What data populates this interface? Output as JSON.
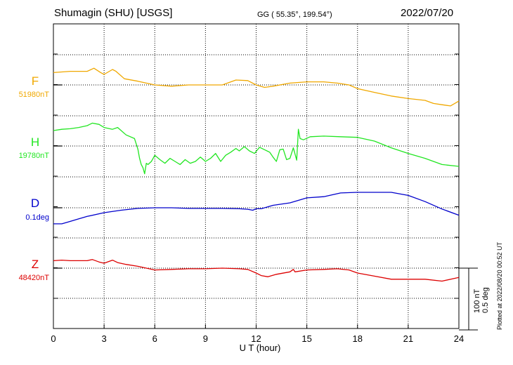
{
  "header": {
    "station": "Shumagin (SHU)  [USGS]",
    "coords": "GG ( 55.35°, 199.54°)",
    "date": "2022/07/20"
  },
  "side_note": "Plotted at 2022/08/20 00:52 UT",
  "scale_bar": {
    "line1": "100 nT",
    "line2": "0.5 deg"
  },
  "colors": {
    "F": "#f0a800",
    "H": "#22e622",
    "D": "#0000cc",
    "Z": "#dd0000"
  },
  "chart_data": {
    "type": "line",
    "xlabel": "U T (hour)",
    "xlim": [
      0,
      24
    ],
    "xticks": [
      "0",
      "3",
      "6",
      "9",
      "12",
      "15",
      "18",
      "21",
      "24"
    ],
    "grid": true,
    "series": [
      {
        "name": "F",
        "baseline_label": "51980nT",
        "unit": "nT",
        "x": [
          0,
          1,
          2,
          2.4,
          2.8,
          3.0,
          3.5,
          3.7,
          4.2,
          5,
          5.5,
          6,
          7,
          8,
          9,
          10,
          10.8,
          11.5,
          12,
          12.5,
          13,
          14,
          15,
          16,
          16.8,
          17.5,
          18,
          19,
          20,
          21,
          22,
          22.5,
          23,
          23.5,
          24
        ],
        "y": [
          20,
          22,
          22,
          27,
          20,
          17,
          25,
          22,
          10,
          6,
          3,
          0,
          -2,
          0,
          0,
          0,
          8,
          7,
          0,
          -4,
          -2,
          3,
          5,
          5,
          3,
          0,
          -6,
          -12,
          -18,
          -22,
          -25,
          -30,
          -32,
          -34,
          -26
        ]
      },
      {
        "name": "H",
        "baseline_label": "19780nT",
        "unit": "nT",
        "x": [
          0,
          0.5,
          1,
          1.5,
          2,
          2.3,
          2.7,
          3,
          3.5,
          3.8,
          4.3,
          4.8,
          5.0,
          5.1,
          5.2,
          5.3,
          5.4,
          5.5,
          5.6,
          5.8,
          6.0,
          6.3,
          6.6,
          6.9,
          7.2,
          7.5,
          7.8,
          8.1,
          8.4,
          8.7,
          9.0,
          9.3,
          9.6,
          9.9,
          10.2,
          10.5,
          10.8,
          11.0,
          11.3,
          11.6,
          11.9,
          12.2,
          12.5,
          12.8,
          13.0,
          13.2,
          13.4,
          13.6,
          13.8,
          14.0,
          14.2,
          14.4,
          14.5,
          14.6,
          14.8,
          15.2,
          16,
          17,
          18,
          19,
          20,
          21,
          22,
          23,
          24
        ],
        "y": [
          25,
          27,
          28,
          30,
          33,
          37,
          35,
          30,
          27,
          30,
          18,
          12,
          -5,
          -20,
          -30,
          -35,
          -45,
          -28,
          -30,
          -25,
          -15,
          -22,
          -28,
          -20,
          -25,
          -30,
          -22,
          -28,
          -25,
          -18,
          -25,
          -20,
          -12,
          -25,
          -15,
          -10,
          -4,
          -8,
          -1,
          -8,
          -12,
          -2,
          -6,
          -10,
          -18,
          -25,
          -6,
          -5,
          -22,
          -20,
          -3,
          -23,
          27,
          12,
          10,
          15,
          16,
          15,
          14,
          8,
          -3,
          -12,
          -20,
          -30,
          -33
        ]
      },
      {
        "name": "D",
        "baseline_label": "0.1deg",
        "unit": "deg",
        "x": [
          0,
          0.5,
          1,
          1.5,
          2,
          3,
          4,
          5,
          6,
          7,
          8,
          9,
          10,
          11,
          11.5,
          11.8,
          12.0,
          12.3,
          13,
          14,
          15,
          16,
          17,
          18,
          19,
          20,
          21,
          22,
          23,
          24
        ],
        "y": [
          -0.13,
          -0.13,
          -0.11,
          -0.09,
          -0.07,
          -0.04,
          -0.02,
          -0.005,
          0.0,
          0.0,
          -0.005,
          -0.005,
          -0.005,
          -0.008,
          -0.012,
          -0.02,
          -0.008,
          -0.008,
          0.02,
          0.04,
          0.08,
          0.09,
          0.12,
          0.125,
          0.125,
          0.125,
          0.1,
          0.05,
          -0.01,
          -0.06
        ]
      },
      {
        "name": "Z",
        "baseline_label": "48420nT",
        "unit": "nT",
        "x": [
          0,
          0.5,
          1,
          1.5,
          2,
          2.3,
          2.7,
          3,
          3.5,
          3.8,
          4.3,
          5,
          5.5,
          6,
          7,
          8,
          9,
          10,
          11,
          11.5,
          12,
          12.3,
          12.7,
          13.2,
          14,
          14.2,
          14.3,
          15,
          16,
          16.8,
          17.5,
          18,
          19,
          20,
          21,
          22,
          23,
          24
        ],
        "y": [
          12,
          13,
          12,
          12,
          12,
          14,
          10,
          8,
          13,
          9,
          6,
          3,
          0,
          -3,
          -2,
          -1,
          -1,
          0,
          -1,
          -2,
          -8,
          -12,
          -14,
          -10,
          -6,
          -2,
          -6,
          -3,
          -2,
          -1,
          -3,
          -8,
          -13,
          -18,
          -18,
          -18,
          -21,
          -15
        ]
      }
    ]
  }
}
